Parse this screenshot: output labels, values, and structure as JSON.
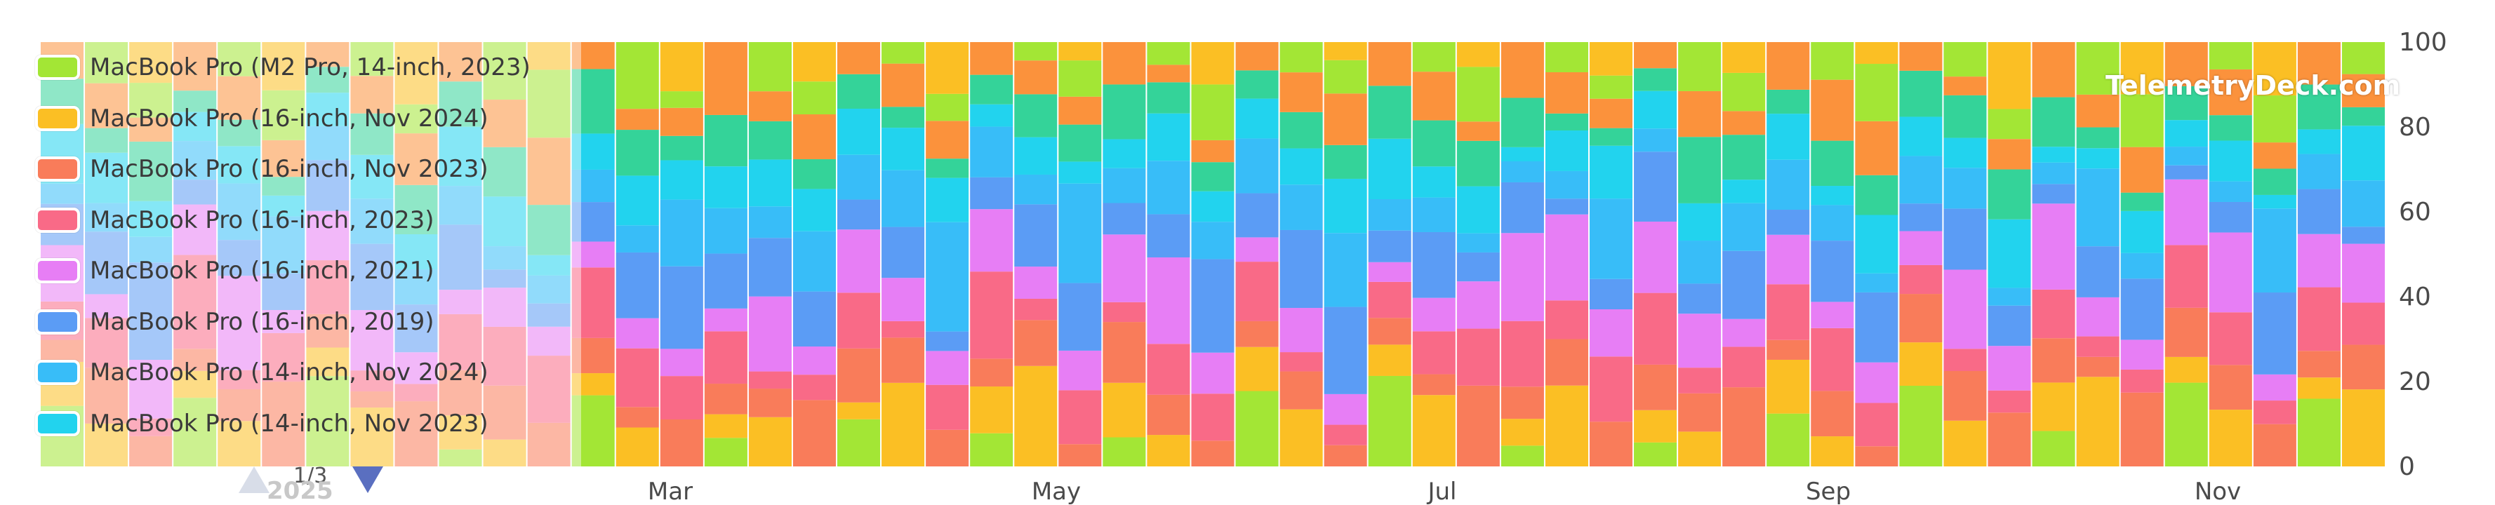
{
  "chart_data": {
    "type": "bar",
    "stacked": true,
    "normalized": true,
    "x_tick_labels": [
      "Mar",
      "May",
      "Jul",
      "Sep",
      "Nov"
    ],
    "x_year_label": "2025",
    "ylim": [
      0,
      100
    ],
    "y_ticks": [
      0,
      20,
      40,
      60,
      80,
      100
    ],
    "legend_position": "left",
    "series": [
      {
        "name": "MacBook Pro (M2 Pro, 14-inch, 2023)",
        "color": "#f9c12e"
      },
      {
        "name": "MacBook Pro (16-inch, Nov 2024)",
        "color": "#f9822e"
      },
      {
        "name": "MacBook Pro (16-inch, Nov 2023)",
        "color": "#f97c6a"
      },
      {
        "name": "MacBook Pro (16-inch, 2023)",
        "color": "#f96a87"
      },
      {
        "name": "MacBook Pro (16-inch, 2021)",
        "color": "#e77ef5"
      },
      {
        "name": "MacBook Pro (16-inch, 2019)",
        "color": "#5b9cf5"
      },
      {
        "name": "MacBook Pro (14-inch, Nov 2024)",
        "color": "#38bdf8"
      },
      {
        "name": "MacBook Pro (14-inch, Nov 2023)",
        "color": "#22d3ee"
      }
    ]
  },
  "legend": [
    {
      "label": "MacBook Pro (M2 Pro, 14-inch, 2023)",
      "color": "#a3e635"
    },
    {
      "label": "MacBook Pro (16-inch, Nov 2024)",
      "color": "#fbbf24"
    },
    {
      "label": "MacBook Pro (16-inch, Nov 2023)",
      "color": "#f97c5a"
    },
    {
      "label": "MacBook Pro (16-inch, 2023)",
      "color": "#f96a87"
    },
    {
      "label": "MacBook Pro (16-inch, 2021)",
      "color": "#e77ef5"
    },
    {
      "label": "MacBook Pro (16-inch, 2019)",
      "color": "#5b9cf5"
    },
    {
      "label": "MacBook Pro (14-inch, Nov 2024)",
      "color": "#38bdf8"
    },
    {
      "label": "MacBook Pro (14-inch, Nov 2023)",
      "color": "#22d3ee"
    }
  ],
  "pager": {
    "text": "1/3"
  },
  "watermark": "TelemetryDeck.com"
}
